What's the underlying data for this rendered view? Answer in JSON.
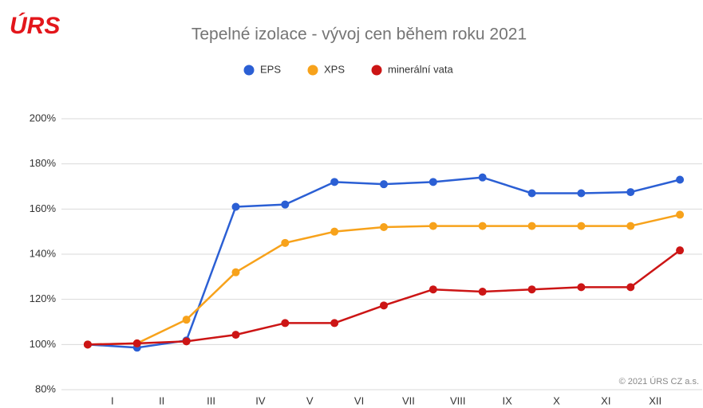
{
  "logo": "ÚRS",
  "copyright": "© 2021 ÚRS CZ a.s.",
  "chart_data": {
    "type": "line",
    "title": "Tepelné izolace - vývoj cen během roku 2021",
    "x": [
      0,
      1,
      2,
      3,
      4,
      5,
      6,
      7,
      8,
      9,
      10,
      11,
      12
    ],
    "xlim": [
      -0.5,
      12.5
    ],
    "xticks": [
      {
        "value": 0.5,
        "label": "I"
      },
      {
        "value": 1.5,
        "label": "II"
      },
      {
        "value": 2.5,
        "label": "III"
      },
      {
        "value": 3.5,
        "label": "IV"
      },
      {
        "value": 4.5,
        "label": "V"
      },
      {
        "value": 5.5,
        "label": "VI"
      },
      {
        "value": 6.5,
        "label": "VII"
      },
      {
        "value": 7.5,
        "label": "VIII"
      },
      {
        "value": 8.5,
        "label": "IX"
      },
      {
        "value": 9.5,
        "label": "X"
      },
      {
        "value": 10.5,
        "label": "XI"
      },
      {
        "value": 11.5,
        "label": "XII"
      }
    ],
    "ylim": [
      80,
      200
    ],
    "yticks": [
      {
        "value": 80,
        "label": "80%"
      },
      {
        "value": 100,
        "label": "100%"
      },
      {
        "value": 120,
        "label": "120%"
      },
      {
        "value": 140,
        "label": "140%"
      },
      {
        "value": 160,
        "label": "160%"
      },
      {
        "value": 180,
        "label": "180%"
      },
      {
        "value": 200,
        "label": "200%"
      }
    ],
    "grid": true,
    "legend": "top",
    "series": [
      {
        "name": "EPS",
        "color": "#2b5fd4",
        "values": [
          100,
          98.6,
          101.8,
          161,
          162,
          172,
          171,
          172,
          174,
          167,
          167,
          167.5,
          173
        ]
      },
      {
        "name": "XPS",
        "color": "#f7a21b",
        "values": [
          100,
          100.5,
          111,
          132,
          145,
          150,
          152,
          152.5,
          152.5,
          152.5,
          152.5,
          152.5,
          157.5
        ]
      },
      {
        "name": "minerální vata",
        "color": "#cc1515",
        "values": [
          100,
          100.5,
          101.4,
          104.3,
          109.5,
          109.5,
          117.3,
          124.4,
          123.4,
          124.4,
          125.4,
          125.4,
          141.7
        ]
      }
    ]
  }
}
